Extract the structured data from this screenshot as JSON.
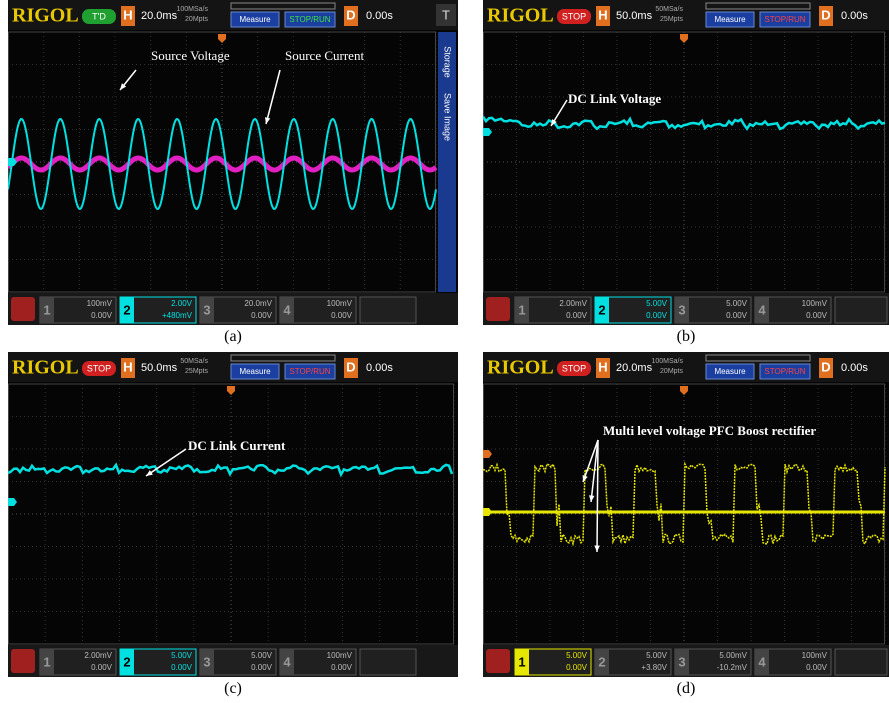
{
  "panels": [
    {
      "caption": "(a)",
      "brand": "RIGOL",
      "status": "T'D",
      "h_label": "H",
      "timebase": "20.0ms",
      "sample_rate": "100MSa/s",
      "memory_depth": "20Mpts",
      "measure": "Measure",
      "stop_run": "STOP/RUN",
      "d_label": "D",
      "delay": "0.00s",
      "corner": "T",
      "side_menu": [
        "Storage",
        "Save Image"
      ],
      "channels": [
        {
          "num": "1",
          "scale": "100mV",
          "offset": "0.00V"
        },
        {
          "num": "2",
          "scale": "2.00V",
          "offset": "+480mV"
        },
        {
          "num": "3",
          "scale": "20.0mV",
          "offset": "0.00V"
        },
        {
          "num": "4",
          "scale": "100mV",
          "offset": "0.00V"
        }
      ],
      "annotations": [
        "Source Voltage",
        "Source Current"
      ]
    },
    {
      "caption": "(b)",
      "brand": "RIGOL",
      "status": "STOP",
      "h_label": "H",
      "timebase": "50.0ms",
      "sample_rate": "50MSa/s",
      "memory_depth": "25Mpts",
      "measure": "Measure",
      "stop_run": "STOP/RUN",
      "d_label": "D",
      "delay": "0.00s",
      "channels": [
        {
          "num": "1",
          "scale": "2.00mV",
          "offset": "0.00V"
        },
        {
          "num": "2",
          "scale": "5.00V",
          "offset": "0.00V"
        },
        {
          "num": "3",
          "scale": "5.00V",
          "offset": "0.00V"
        },
        {
          "num": "4",
          "scale": "100mV",
          "offset": "0.00V"
        }
      ],
      "annotations": [
        "DC Link Voltage"
      ]
    },
    {
      "caption": "(c)",
      "brand": "RIGOL",
      "status": "STOP",
      "h_label": "H",
      "timebase": "50.0ms",
      "sample_rate": "50MSa/s",
      "memory_depth": "25Mpts",
      "measure": "Measure",
      "stop_run": "STOP/RUN",
      "d_label": "D",
      "delay": "0.00s",
      "channels": [
        {
          "num": "1",
          "scale": "2.00mV",
          "offset": "0.00V"
        },
        {
          "num": "2",
          "scale": "5.00V",
          "offset": "0.00V"
        },
        {
          "num": "3",
          "scale": "5.00V",
          "offset": "0.00V"
        },
        {
          "num": "4",
          "scale": "100mV",
          "offset": "0.00V"
        }
      ],
      "annotations": [
        "DC Link Current"
      ]
    },
    {
      "caption": "(d)",
      "brand": "RIGOL",
      "status": "STOP",
      "h_label": "H",
      "timebase": "20.0ms",
      "sample_rate": "100MSa/s",
      "memory_depth": "20Mpts",
      "measure": "Measure",
      "stop_run": "STOP/RUN",
      "d_label": "D",
      "delay": "0.00s",
      "channels": [
        {
          "num": "1",
          "scale": "5.00V",
          "offset": "0.00V"
        },
        {
          "num": "2",
          "scale": "5.00V",
          "offset": "+3.80V"
        },
        {
          "num": "3",
          "scale": "5.00mV",
          "offset": "-10.2mV"
        },
        {
          "num": "4",
          "scale": "100mV",
          "offset": "0.00V"
        }
      ],
      "annotations": [
        "Multi level voltage PFC Boost rectifier"
      ]
    }
  ]
}
